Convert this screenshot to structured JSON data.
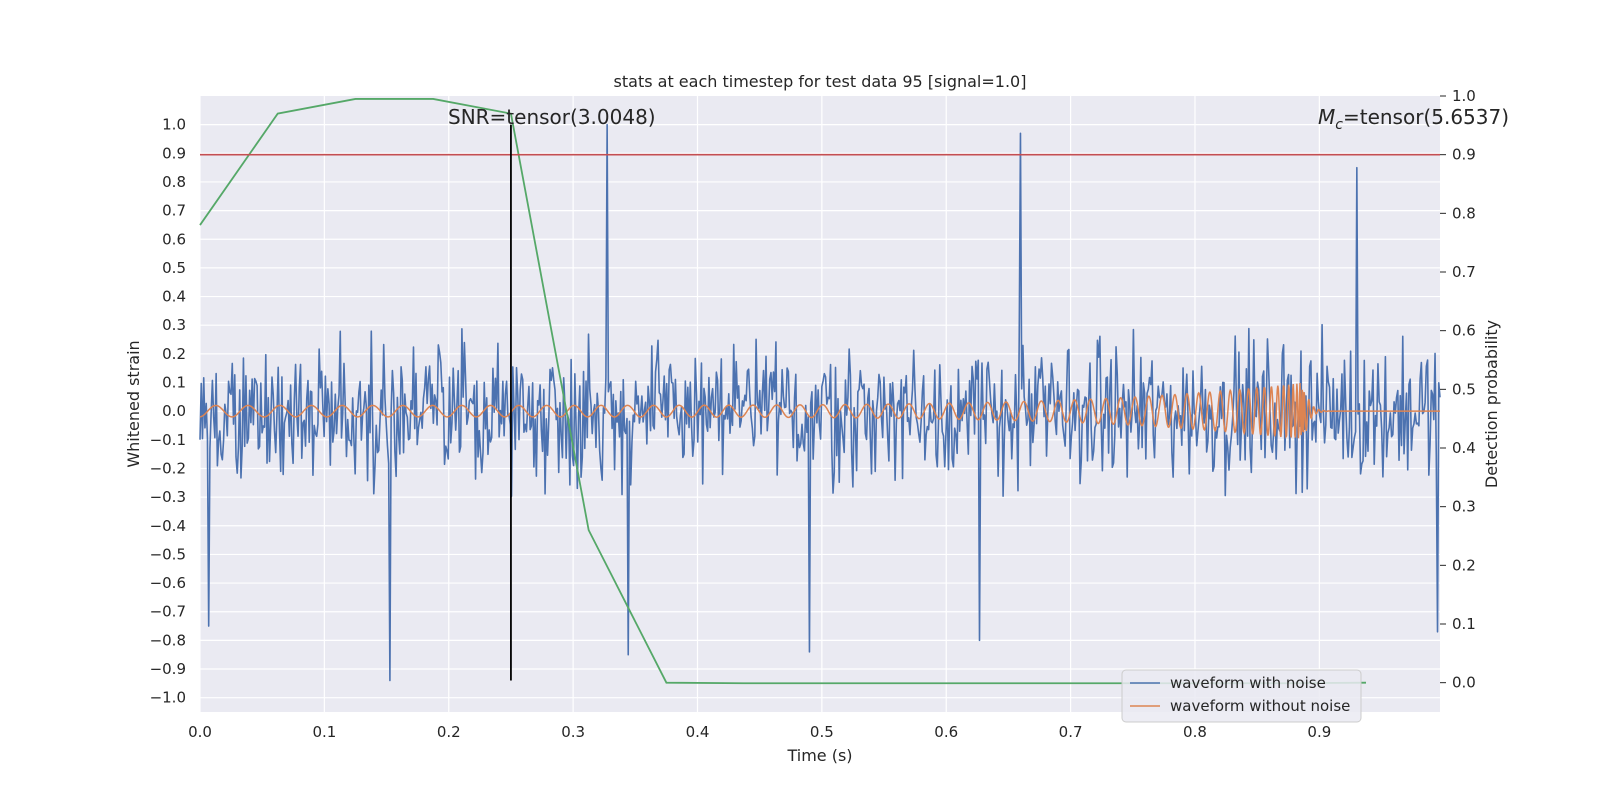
{
  "chart_data": {
    "type": "line",
    "title": "stats at each timestep for test data 95 [signal=1.0]",
    "xlabel": "Time (s)",
    "ylabel": "Whitened strain",
    "y2label": "Detection probability",
    "xlim": [
      0.0,
      0.997
    ],
    "ylim": [
      -1.05,
      1.1
    ],
    "y2lim": [
      -0.05,
      1.0
    ],
    "x_ticks": [
      "0.0",
      "0.1",
      "0.2",
      "0.3",
      "0.4",
      "0.5",
      "0.6",
      "0.7",
      "0.8",
      "0.9"
    ],
    "y_ticks": [
      "1.0",
      "0.9",
      "0.8",
      "0.7",
      "0.6",
      "0.5",
      "0.4",
      "0.3",
      "0.2",
      "0.1",
      "0.0",
      "−0.1",
      "−0.2",
      "−0.3",
      "−0.4",
      "−0.5",
      "−0.6",
      "−0.7",
      "−0.8",
      "−0.9",
      "−1.0"
    ],
    "y2_ticks": [
      "1.0",
      "0.9",
      "0.8",
      "0.7",
      "0.6",
      "0.5",
      "0.4",
      "0.3",
      "0.2",
      "0.1",
      "0.0"
    ],
    "grid": true,
    "legend_position": "lower right",
    "annotations": [
      {
        "text": "SNR=tensor(3.0048)",
        "x": 0.2,
        "y": 1.03
      },
      {
        "text_main": "M",
        "text_sub": "c",
        "text_rest": "=tensor(5.6537)",
        "x": 0.9,
        "y": 1.03
      }
    ],
    "threshold_line": {
      "y2": 0.9,
      "color": "#c44e52"
    },
    "vertical_line": {
      "x": 0.25,
      "y_range": [
        -0.94,
        1.0
      ],
      "color": "#000000"
    },
    "series": [
      {
        "name": "waveform with noise",
        "color": "#4c72b0",
        "axis": "left",
        "kind": "noise",
        "n_points": 1000,
        "amplitude_range": [
          -0.94,
          1.0
        ],
        "notable_peaks": [
          {
            "x": 0.327,
            "y": 1.0
          },
          {
            "x": 0.66,
            "y": 0.97
          },
          {
            "x": 0.93,
            "y": 0.85
          },
          {
            "x": 0.153,
            "y": -0.94
          },
          {
            "x": 0.49,
            "y": -0.84
          },
          {
            "x": 0.344,
            "y": -0.85
          },
          {
            "x": 0.627,
            "y": -0.8
          },
          {
            "x": 0.007,
            "y": -0.75
          },
          {
            "x": 0.995,
            "y": -0.77
          }
        ]
      },
      {
        "name": "waveform without noise",
        "color": "#dd8452",
        "axis": "left",
        "kind": "chirp",
        "x_start": 0.0,
        "x_merger": 0.888,
        "x_end": 0.997,
        "amp_start": 0.02,
        "amp_peak": 0.1
      },
      {
        "name": "detection probability",
        "color": "#55a868",
        "axis": "right",
        "kind": "line",
        "x": [
          0.0,
          0.0625,
          0.125,
          0.1875,
          0.25,
          0.3125,
          0.375,
          0.4375,
          0.5,
          0.5625,
          0.625,
          0.6875,
          0.75,
          0.8125,
          0.875,
          0.9375
        ],
        "y": [
          0.78,
          0.97,
          0.995,
          0.995,
          0.97,
          0.26,
          0.0,
          -0.001,
          -0.001,
          -0.001,
          -0.001,
          -0.001,
          -0.001,
          -0.001,
          -0.001,
          0.0
        ]
      }
    ]
  }
}
